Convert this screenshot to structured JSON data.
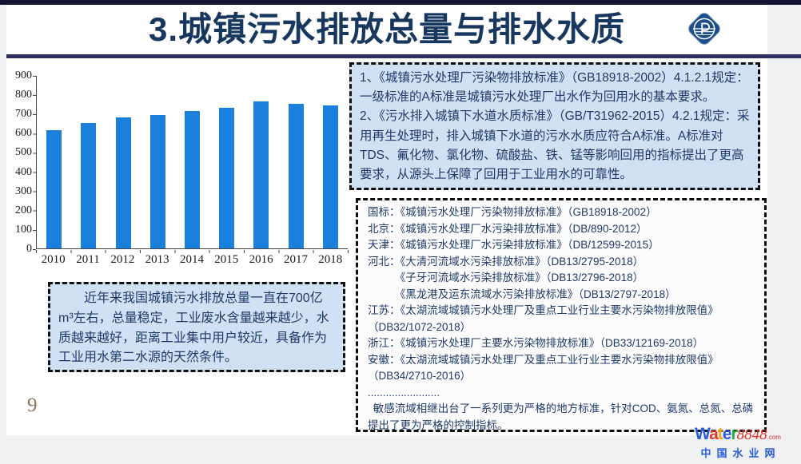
{
  "page": {
    "background": "#eff0f1",
    "slide_background": "#ffffff",
    "top_bar_color": "#141433"
  },
  "header": {
    "title": "3.城镇污水排放总量与排水水质",
    "title_color": "#17375e",
    "divider_color": "#2f2f63",
    "logo_icon": "institute-emblem"
  },
  "chart_data": {
    "type": "bar",
    "categories": [
      "2010",
      "2011",
      "2012",
      "2013",
      "2014",
      "2015",
      "2016",
      "2017",
      "2018"
    ],
    "values": [
      615,
      655,
      685,
      695,
      715,
      735,
      765,
      755,
      745
    ],
    "title": "",
    "xlabel": "",
    "ylabel": "",
    "ylim": [
      0,
      900
    ],
    "ytick_step": 100,
    "bar_color": "#1a80dc",
    "grid": false,
    "legend": null
  },
  "notes_box": {
    "items": [
      "1、《城镇污水处理厂污染物排放标准》（GB18918-2002）4.1.2.1规定：一级标准的A标准是城镇污水处理厂出水作为回用水的基本要求。",
      "2、《污水排入城镇下水道水质标准》（GB/T31962-2015）4.2.1规定：采用再生处理时，排入城镇下水道的污水水质应符合A标准。A标准对TDS、氟化物、氯化物、硫酸盐、铁、锰等影响回用的指标提出了更高要求，从源头上保障了回用于工业用水的可靠性。"
    ]
  },
  "standards_box": {
    "lines": [
      "国标：《城镇污水处理厂污染物排放标准》（GB18918-2002）",
      "北京：《城镇污水处理厂水污染排放标准》（DB/890-2012）",
      "天津：《城镇污水处理厂水污染排放标准》（DB/12599-2015）",
      "河北：《大清河流域水污染排放标准》（DB13/2795-2018）",
      "　　　《子牙河流域水污染排放标准》（DB13/2796-2018）",
      "　　　《黑龙港及运东流域水污染排放标准》（DB13/2797-2018）",
      "江苏：《太湖流域城镇污水处理厂及重点工业行业主要水污染物排放限值》（DB32/1072-2018）",
      "浙江：《城镇污水处理厂主要水污染物排放标准》（DB33/12169-2018）",
      "安徽：《太湖流域城镇污水处理厂及重点工业行业主要水污染物排放限值》（DB34/2710-2016）",
      "........................",
      " 敏感流域相继出台了一系列更为严格的地方标准，针对COD、氨氮、总氮、总磷提出了更为严格的控制指标。"
    ]
  },
  "summary_box": {
    "text": "　　近年来我国城镇污水排放总量一直在700亿m³左右，总量稳定，工业废水含量越来越少，水质越来越好，距离工业集中用户较近，具备作为工业用水第二水源的天然条件。"
  },
  "page_number": "9",
  "watermark": {
    "brand_letters": [
      [
        "W",
        "#2a5cdb"
      ],
      [
        "a",
        "#e03a2c"
      ],
      [
        "t",
        "#f0a818"
      ],
      [
        "e",
        "#2a5cdb"
      ],
      [
        "r",
        "#2faa47"
      ]
    ],
    "number": "8848",
    "suffix": ".com",
    "cn_name": "中国水业网"
  }
}
